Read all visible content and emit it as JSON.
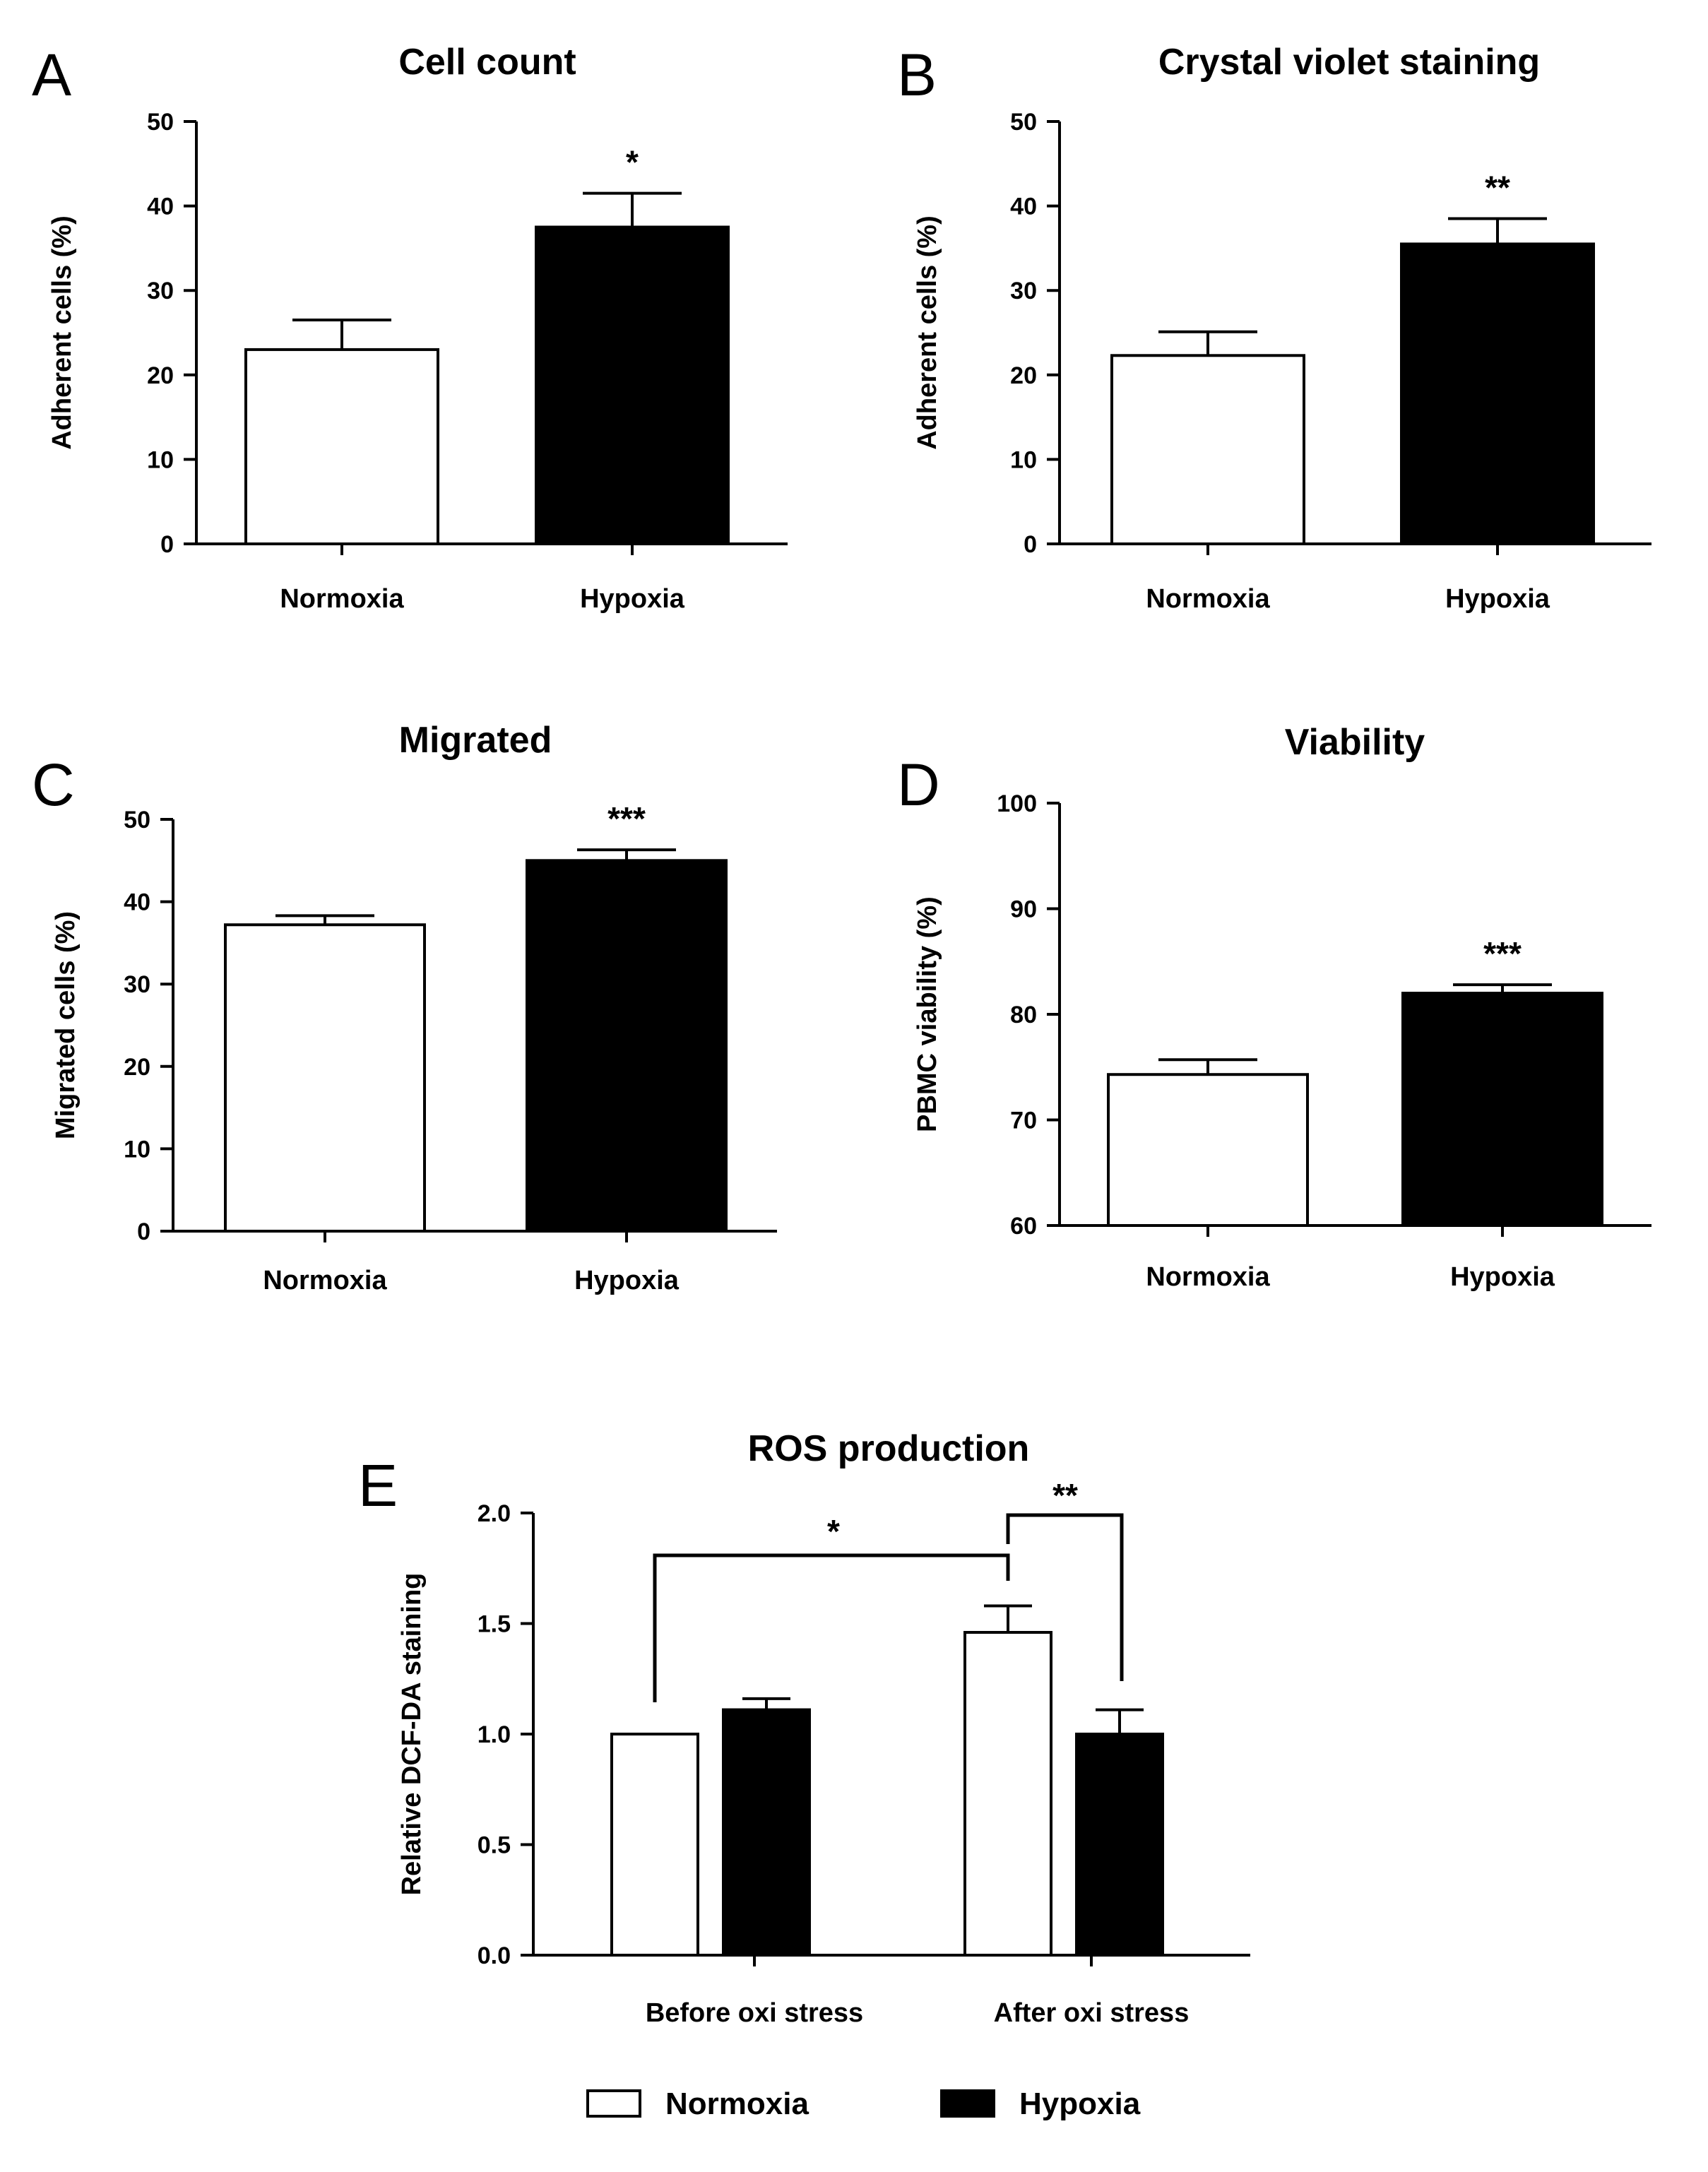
{
  "chart_data": [
    {
      "id": "A",
      "type": "bar",
      "panel_label": "A",
      "title": "Cell count",
      "ylabel": "Adherent cells (%)",
      "categories": [
        "Normoxia",
        "Hypoxia"
      ],
      "values": [
        23,
        37.5
      ],
      "errors": [
        3.5,
        4
      ],
      "colors": [
        "#ffffff",
        "#000000"
      ],
      "ylim": [
        0,
        50
      ],
      "yticks": [
        0,
        10,
        20,
        30,
        40,
        50
      ],
      "significance": [
        {
          "bar": 1,
          "label": "*"
        }
      ]
    },
    {
      "id": "B",
      "type": "bar",
      "panel_label": "B",
      "title": "Crystal violet staining",
      "ylabel": "Adherent cells (%)",
      "categories": [
        "Normoxia",
        "Hypoxia"
      ],
      "values": [
        22.3,
        35.5
      ],
      "errors": [
        2.8,
        3
      ],
      "colors": [
        "#ffffff",
        "#000000"
      ],
      "ylim": [
        0,
        50
      ],
      "yticks": [
        0,
        10,
        20,
        30,
        40,
        50
      ],
      "significance": [
        {
          "bar": 1,
          "label": "**"
        }
      ]
    },
    {
      "id": "C",
      "type": "bar",
      "panel_label": "C",
      "title": "Migrated",
      "ylabel": "Migrated cells (%)",
      "categories": [
        "Normoxia",
        "Hypoxia"
      ],
      "values": [
        37.2,
        45
      ],
      "errors": [
        1.1,
        1.3
      ],
      "colors": [
        "#ffffff",
        "#000000"
      ],
      "ylim": [
        0,
        50
      ],
      "yticks": [
        0,
        10,
        20,
        30,
        40,
        50
      ],
      "significance": [
        {
          "bar": 1,
          "label": "***"
        }
      ]
    },
    {
      "id": "D",
      "type": "bar",
      "panel_label": "D",
      "title": "Viability",
      "ylabel": "PBMC viability (%)",
      "categories": [
        "Normoxia",
        "Hypoxia"
      ],
      "values": [
        74.3,
        82
      ],
      "errors": [
        1.4,
        0.8
      ],
      "colors": [
        "#ffffff",
        "#000000"
      ],
      "ylim": [
        60,
        100
      ],
      "yticks": [
        60,
        70,
        80,
        90,
        100
      ],
      "significance": [
        {
          "bar": 1,
          "label": "***"
        }
      ]
    },
    {
      "id": "E",
      "type": "bar",
      "panel_label": "E",
      "title": "ROS production",
      "ylabel": "Relative DCF-DA staining",
      "categories": [
        "Before oxi stress",
        "After oxi stress"
      ],
      "series": [
        {
          "name": "Normoxia",
          "color": "#ffffff",
          "values": [
            1.0,
            1.46
          ],
          "errors": [
            0,
            0.12
          ]
        },
        {
          "name": "Hypoxia",
          "color": "#000000",
          "values": [
            1.11,
            1.0
          ],
          "errors": [
            0.05,
            0.11
          ]
        }
      ],
      "ylim": [
        0,
        2.0
      ],
      "yticks": [
        "0.0",
        "0.5",
        "1.0",
        "1.5",
        "2.0"
      ],
      "brackets": [
        {
          "from": [
            0,
            0
          ],
          "to": [
            1,
            0
          ],
          "label": "*"
        },
        {
          "from": [
            1,
            0
          ],
          "to": [
            1,
            1
          ],
          "label": "**"
        }
      ],
      "legend": [
        "Normoxia",
        "Hypoxia"
      ]
    }
  ]
}
